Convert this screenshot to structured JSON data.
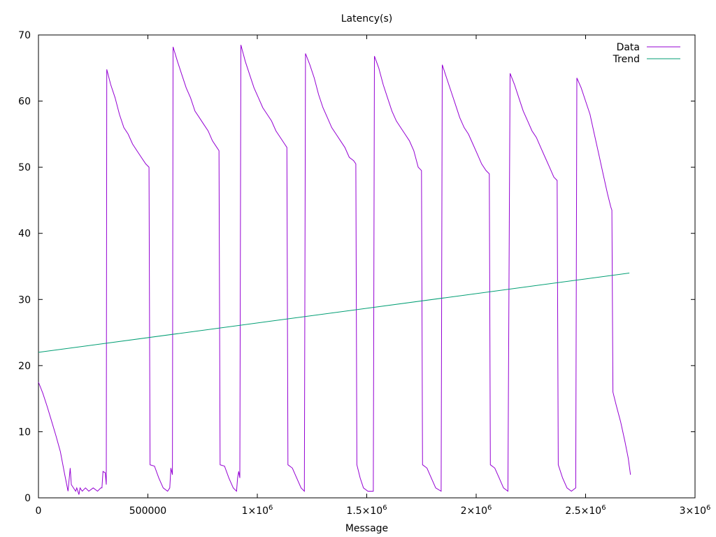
{
  "chart_data": {
    "type": "line",
    "title": "Latency(s)",
    "xlabel": "Message",
    "ylabel": "",
    "xlim": [
      0,
      3000000
    ],
    "ylim": [
      0,
      70
    ],
    "x_ticks": [
      0,
      500000,
      1000000,
      1500000,
      2000000,
      2500000,
      3000000
    ],
    "x_tick_labels": [
      {
        "main": "0",
        "sup": ""
      },
      {
        "main": "500000",
        "sup": ""
      },
      {
        "main": "1×10",
        "sup": "6"
      },
      {
        "main": "1.5×10",
        "sup": "6"
      },
      {
        "main": "2×10",
        "sup": "6"
      },
      {
        "main": "2.5×10",
        "sup": "6"
      },
      {
        "main": "3×10",
        "sup": "6"
      }
    ],
    "y_ticks": [
      0,
      10,
      20,
      30,
      40,
      50,
      60,
      70
    ],
    "y_tick_labels": [
      "0",
      "10",
      "20",
      "30",
      "40",
      "50",
      "60",
      "70"
    ],
    "legend_position": "top-right",
    "grid": false,
    "series": [
      {
        "name": "Data",
        "color": "#9400d3",
        "points": [
          [
            0,
            17.5
          ],
          [
            20000,
            15.8
          ],
          [
            40000,
            13.8
          ],
          [
            60000,
            11.6
          ],
          [
            80000,
            9.4
          ],
          [
            100000,
            7.0
          ],
          [
            120000,
            3.5
          ],
          [
            135000,
            1.0
          ],
          [
            145000,
            4.5
          ],
          [
            150000,
            2.0
          ],
          [
            170000,
            1.0
          ],
          [
            175000,
            1.5
          ],
          [
            185000,
            0.5
          ],
          [
            190000,
            1.5
          ],
          [
            200000,
            1.0
          ],
          [
            215000,
            1.5
          ],
          [
            230000,
            1.0
          ],
          [
            250000,
            1.5
          ],
          [
            270000,
            1.0
          ],
          [
            285000,
            1.5
          ],
          [
            290000,
            1.5
          ],
          [
            295000,
            4.0
          ],
          [
            305000,
            3.8
          ],
          [
            310000,
            2.0
          ],
          [
            312000,
            64.8
          ],
          [
            330000,
            62.5
          ],
          [
            350000,
            60.5
          ],
          [
            370000,
            58.0
          ],
          [
            390000,
            56.0
          ],
          [
            410000,
            55.0
          ],
          [
            430000,
            53.5
          ],
          [
            450000,
            52.5
          ],
          [
            470000,
            51.5
          ],
          [
            490000,
            50.5
          ],
          [
            505000,
            50.0
          ],
          [
            510000,
            5.0
          ],
          [
            530000,
            4.8
          ],
          [
            550000,
            3.0
          ],
          [
            570000,
            1.5
          ],
          [
            590000,
            1.0
          ],
          [
            600000,
            1.5
          ],
          [
            605000,
            4.5
          ],
          [
            612000,
            3.5
          ],
          [
            615000,
            68.2
          ],
          [
            635000,
            66.0
          ],
          [
            655000,
            64.0
          ],
          [
            675000,
            62.0
          ],
          [
            695000,
            60.5
          ],
          [
            715000,
            58.5
          ],
          [
            735000,
            57.5
          ],
          [
            755000,
            56.5
          ],
          [
            775000,
            55.5
          ],
          [
            795000,
            54.0
          ],
          [
            815000,
            53.0
          ],
          [
            825000,
            52.5
          ],
          [
            830000,
            5.0
          ],
          [
            850000,
            4.8
          ],
          [
            870000,
            3.0
          ],
          [
            890000,
            1.5
          ],
          [
            905000,
            1.0
          ],
          [
            910000,
            3.0
          ],
          [
            915000,
            4.0
          ],
          [
            920000,
            3.0
          ],
          [
            925000,
            68.5
          ],
          [
            945000,
            66.0
          ],
          [
            965000,
            64.0
          ],
          [
            985000,
            62.0
          ],
          [
            1005000,
            60.5
          ],
          [
            1025000,
            59.0
          ],
          [
            1045000,
            58.0
          ],
          [
            1065000,
            57.0
          ],
          [
            1085000,
            55.5
          ],
          [
            1105000,
            54.5
          ],
          [
            1125000,
            53.5
          ],
          [
            1135000,
            53.0
          ],
          [
            1140000,
            5.0
          ],
          [
            1160000,
            4.5
          ],
          [
            1180000,
            3.0
          ],
          [
            1200000,
            1.5
          ],
          [
            1215000,
            1.0
          ],
          [
            1220000,
            67.2
          ],
          [
            1240000,
            65.5
          ],
          [
            1260000,
            63.5
          ],
          [
            1280000,
            61.0
          ],
          [
            1300000,
            59.0
          ],
          [
            1320000,
            57.5
          ],
          [
            1340000,
            56.0
          ],
          [
            1360000,
            55.0
          ],
          [
            1380000,
            54.0
          ],
          [
            1400000,
            53.0
          ],
          [
            1420000,
            51.5
          ],
          [
            1440000,
            51.0
          ],
          [
            1450000,
            50.5
          ],
          [
            1455000,
            5.0
          ],
          [
            1470000,
            3.0
          ],
          [
            1485000,
            1.5
          ],
          [
            1505000,
            1.0
          ],
          [
            1530000,
            1.0
          ],
          [
            1535000,
            66.8
          ],
          [
            1555000,
            65.0
          ],
          [
            1575000,
            62.5
          ],
          [
            1595000,
            60.5
          ],
          [
            1615000,
            58.5
          ],
          [
            1635000,
            57.0
          ],
          [
            1655000,
            56.0
          ],
          [
            1675000,
            55.0
          ],
          [
            1695000,
            54.0
          ],
          [
            1715000,
            52.5
          ],
          [
            1735000,
            50.0
          ],
          [
            1750000,
            49.5
          ],
          [
            1755000,
            5.0
          ],
          [
            1775000,
            4.5
          ],
          [
            1795000,
            3.0
          ],
          [
            1815000,
            1.5
          ],
          [
            1840000,
            1.0
          ],
          [
            1845000,
            65.5
          ],
          [
            1865000,
            63.5
          ],
          [
            1885000,
            61.5
          ],
          [
            1905000,
            59.5
          ],
          [
            1925000,
            57.5
          ],
          [
            1945000,
            56.0
          ],
          [
            1965000,
            55.0
          ],
          [
            1985000,
            53.5
          ],
          [
            2005000,
            52.0
          ],
          [
            2025000,
            50.5
          ],
          [
            2045000,
            49.5
          ],
          [
            2060000,
            49.0
          ],
          [
            2065000,
            5.0
          ],
          [
            2085000,
            4.5
          ],
          [
            2105000,
            3.0
          ],
          [
            2125000,
            1.5
          ],
          [
            2145000,
            1.0
          ],
          [
            2155000,
            64.2
          ],
          [
            2175000,
            62.5
          ],
          [
            2195000,
            60.5
          ],
          [
            2215000,
            58.5
          ],
          [
            2235000,
            57.0
          ],
          [
            2255000,
            55.5
          ],
          [
            2275000,
            54.5
          ],
          [
            2295000,
            53.0
          ],
          [
            2315000,
            51.5
          ],
          [
            2335000,
            50.0
          ],
          [
            2355000,
            48.5
          ],
          [
            2370000,
            48.0
          ],
          [
            2375000,
            5.0
          ],
          [
            2395000,
            3.0
          ],
          [
            2415000,
            1.5
          ],
          [
            2435000,
            1.0
          ],
          [
            2455000,
            1.5
          ],
          [
            2460000,
            63.5
          ],
          [
            2480000,
            62.0
          ],
          [
            2500000,
            60.0
          ],
          [
            2520000,
            58.0
          ],
          [
            2540000,
            55.0
          ],
          [
            2560000,
            52.0
          ],
          [
            2580000,
            49.0
          ],
          [
            2600000,
            46.0
          ],
          [
            2615000,
            44.0
          ],
          [
            2620000,
            43.5
          ],
          [
            2625000,
            16.0
          ],
          [
            2640000,
            14.0
          ],
          [
            2660000,
            11.5
          ],
          [
            2680000,
            8.5
          ],
          [
            2695000,
            6.0
          ],
          [
            2705000,
            3.5
          ]
        ]
      },
      {
        "name": "Trend",
        "color": "#009e73",
        "points": [
          [
            0,
            22.0
          ],
          [
            2700000,
            34.0
          ]
        ]
      }
    ]
  }
}
